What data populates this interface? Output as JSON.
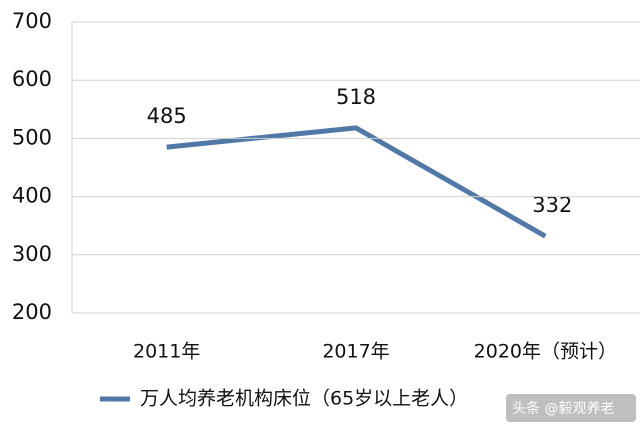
{
  "chart_data": {
    "type": "line",
    "categories": [
      "2011年",
      "2017年",
      "2020年（预计）"
    ],
    "series": [
      {
        "name": "万人均养老机构床位（65岁以上老人）",
        "color": "#5079a8",
        "values": [
          485,
          518,
          332
        ]
      }
    ],
    "ylim": [
      200,
      700
    ],
    "yticks": [
      200,
      300,
      400,
      500,
      600,
      700
    ],
    "grid": true,
    "legend": "bottom"
  },
  "watermark": "头条 @毅观养老"
}
